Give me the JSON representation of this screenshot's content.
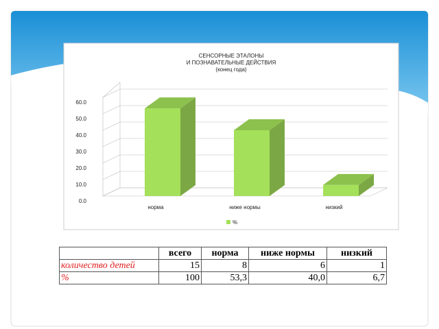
{
  "chart_data": {
    "type": "bar3d",
    "title": [
      "СЕНСОРНЫЕ ЭТАЛОНЫ",
      "И ПОЗНАВАТЕЛЬНЫЕ ДЕЙСТВИЯ",
      "(конец года)"
    ],
    "categories": [
      "норма",
      "ниже нормы",
      "низкий"
    ],
    "series": [
      {
        "name": "%",
        "color": "#a4e05a",
        "values": [
          53.3,
          40.0,
          6.7
        ]
      }
    ],
    "ylim": [
      0,
      60
    ],
    "yticks": [
      {
        "value": 0,
        "label": "0.0"
      },
      {
        "value": 10,
        "label": "10.0"
      },
      {
        "value": 20,
        "label": "20.0"
      },
      {
        "value": 30,
        "label": "30.0"
      },
      {
        "value": 40,
        "label": "40.0"
      },
      {
        "value": 50,
        "label": "50.0"
      },
      {
        "value": 60,
        "label": "60.0"
      }
    ],
    "grid": true,
    "legend": "bottom"
  },
  "table": {
    "header": [
      "всего",
      "норма",
      "ниже нормы",
      "низкий"
    ],
    "rows": [
      [
        "количество детей",
        "15",
        "8",
        "6",
        "1"
      ],
      [
        "%",
        "100",
        "53,3",
        "40,0",
        "6,7"
      ]
    ]
  }
}
